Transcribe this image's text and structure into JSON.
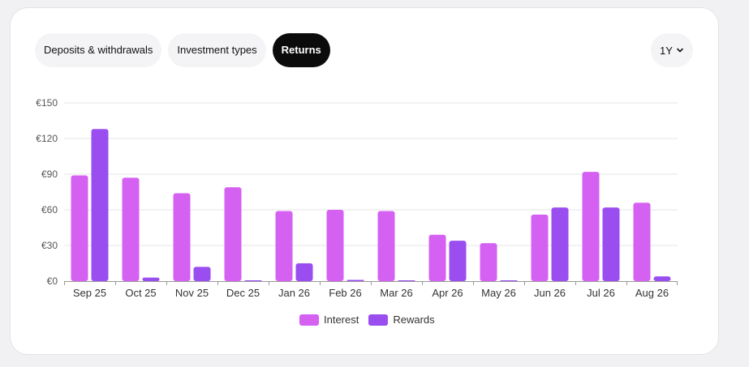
{
  "tabs": [
    {
      "label": "Deposits & withdrawals",
      "active": false
    },
    {
      "label": "Investment types",
      "active": false
    },
    {
      "label": "Returns",
      "active": true
    }
  ],
  "period": {
    "label": "1Y",
    "icon": "chevron-down-icon"
  },
  "colors": {
    "interest": "#d561f2",
    "rewards": "#9a4ef0",
    "grid": "#e6e6e8",
    "axis": "#999999"
  },
  "chart_data": {
    "type": "bar",
    "categories": [
      "Sep 25",
      "Oct 25",
      "Nov 25",
      "Dec 25",
      "Jan 26",
      "Feb 26",
      "Mar 26",
      "Apr 26",
      "May 26",
      "Jun 26",
      "Jul 26",
      "Aug 26"
    ],
    "series": [
      {
        "name": "Interest",
        "values": [
          89,
          87,
          74,
          79,
          59,
          60,
          59,
          39,
          32,
          56,
          92,
          66
        ]
      },
      {
        "name": "Rewards",
        "values": [
          128,
          3,
          12,
          0,
          15,
          1,
          0.5,
          34,
          0.3,
          62,
          62,
          4
        ]
      }
    ],
    "yticks": [
      "€0",
      "€30",
      "€60",
      "€90",
      "€120",
      "€150"
    ],
    "ytick_values": [
      0,
      30,
      60,
      90,
      120,
      150
    ],
    "ylim": [
      0,
      150
    ],
    "grid": true,
    "legend_position": "bottom-center"
  }
}
